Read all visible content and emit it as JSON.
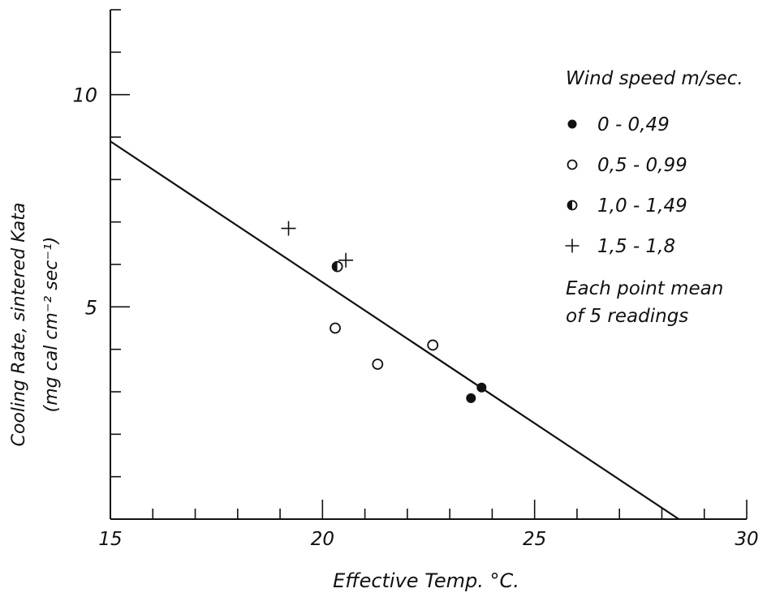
{
  "chart_data": {
    "type": "scatter",
    "title": "",
    "xlabel": "Effective Temp. °C.",
    "ylabel_line1": "Cooling Rate, sintered Kata",
    "ylabel_line2": "(mg cal cm⁻² sec⁻¹)",
    "xlim": [
      15,
      30
    ],
    "ylim": [
      0,
      12
    ],
    "x_ticks": [
      {
        "value": 15,
        "label": "15"
      },
      {
        "value": 20,
        "label": "20"
      },
      {
        "value": 25,
        "label": "25"
      },
      {
        "value": 30,
        "label": "30"
      }
    ],
    "y_ticks": [
      {
        "value": 5,
        "label": "5"
      },
      {
        "value": 10,
        "label": "10"
      }
    ],
    "x_minor_step": 1,
    "y_minor_step": 1,
    "grid": false,
    "legend_title": "Wind speed m/sec.",
    "legend_note_line1": "Each point mean",
    "legend_note_line2": "of 5 readings",
    "legend_position": "right",
    "series": [
      {
        "name": "0 - 0,49",
        "marker": "filled-circle",
        "points": [
          [
            23.5,
            2.85
          ],
          [
            23.75,
            3.1
          ],
          [
            21.3,
            3.65
          ]
        ]
      },
      {
        "name": "0,5 - 0,99",
        "marker": "open-circle",
        "points": [
          [
            20.3,
            4.5
          ],
          [
            22.6,
            4.1
          ],
          [
            21.3,
            3.65
          ]
        ]
      },
      {
        "name": "1,0 - 1,49",
        "marker": "half-circle",
        "points": [
          [
            20.35,
            5.95
          ]
        ]
      },
      {
        "name": "1,5 - 1,8",
        "marker": "plus",
        "points": [
          [
            19.2,
            6.85
          ],
          [
            20.55,
            6.1
          ]
        ]
      }
    ],
    "trend_line": {
      "points": [
        [
          15,
          8.9
        ],
        [
          28.4,
          0
        ]
      ]
    }
  }
}
